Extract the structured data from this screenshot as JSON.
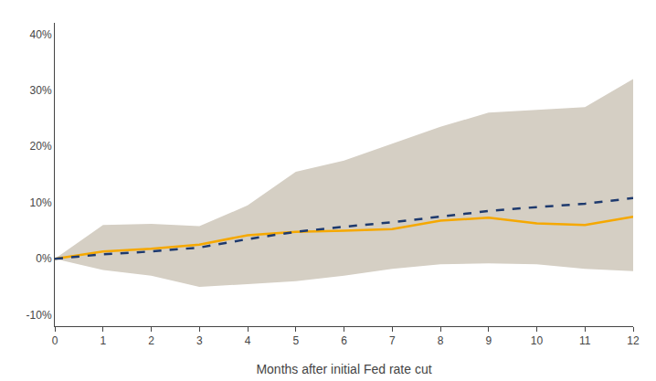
{
  "chart_data": {
    "type": "line",
    "xlabel": "Months after initial Fed rate cut",
    "x": [
      0,
      1,
      2,
      3,
      4,
      5,
      6,
      7,
      8,
      9,
      10,
      11,
      12
    ],
    "series": [
      {
        "type": "area",
        "color": "#d5cfc4",
        "lower": [
          0.0,
          -0.02,
          -0.03,
          -0.05,
          -0.045,
          -0.04,
          -0.03,
          -0.018,
          -0.01,
          -0.008,
          -0.01,
          -0.018,
          -0.022
        ],
        "upper": [
          0.0,
          0.06,
          0.062,
          0.058,
          0.095,
          0.155,
          0.175,
          0.205,
          0.235,
          0.26,
          0.265,
          0.27,
          0.32
        ]
      },
      {
        "type": "line",
        "color": "#f5a800",
        "line_style": "solid",
        "values": [
          0.0,
          0.013,
          0.018,
          0.025,
          0.042,
          0.048,
          0.05,
          0.053,
          0.068,
          0.073,
          0.063,
          0.06,
          0.075
        ]
      },
      {
        "type": "line",
        "color": "#1e3a6e",
        "line_style": "dashed",
        "values": [
          0.0,
          0.008,
          0.013,
          0.02,
          0.035,
          0.048,
          0.057,
          0.065,
          0.075,
          0.085,
          0.092,
          0.098,
          0.108
        ]
      }
    ],
    "xlim": [
      0,
      12
    ],
    "xticks": [
      0,
      1,
      2,
      3,
      4,
      5,
      6,
      7,
      8,
      9,
      10,
      11,
      12
    ],
    "ylim": [
      -0.12,
      0.42
    ],
    "yticks": [
      {
        "value": -0.1,
        "label": "-10%"
      },
      {
        "value": 0.0,
        "label": "0%"
      },
      {
        "value": 0.1,
        "label": "10%"
      },
      {
        "value": 0.2,
        "label": "20%"
      },
      {
        "value": 0.3,
        "label": "30%"
      },
      {
        "value": 0.4,
        "label": "40%"
      }
    ],
    "grid": false
  }
}
